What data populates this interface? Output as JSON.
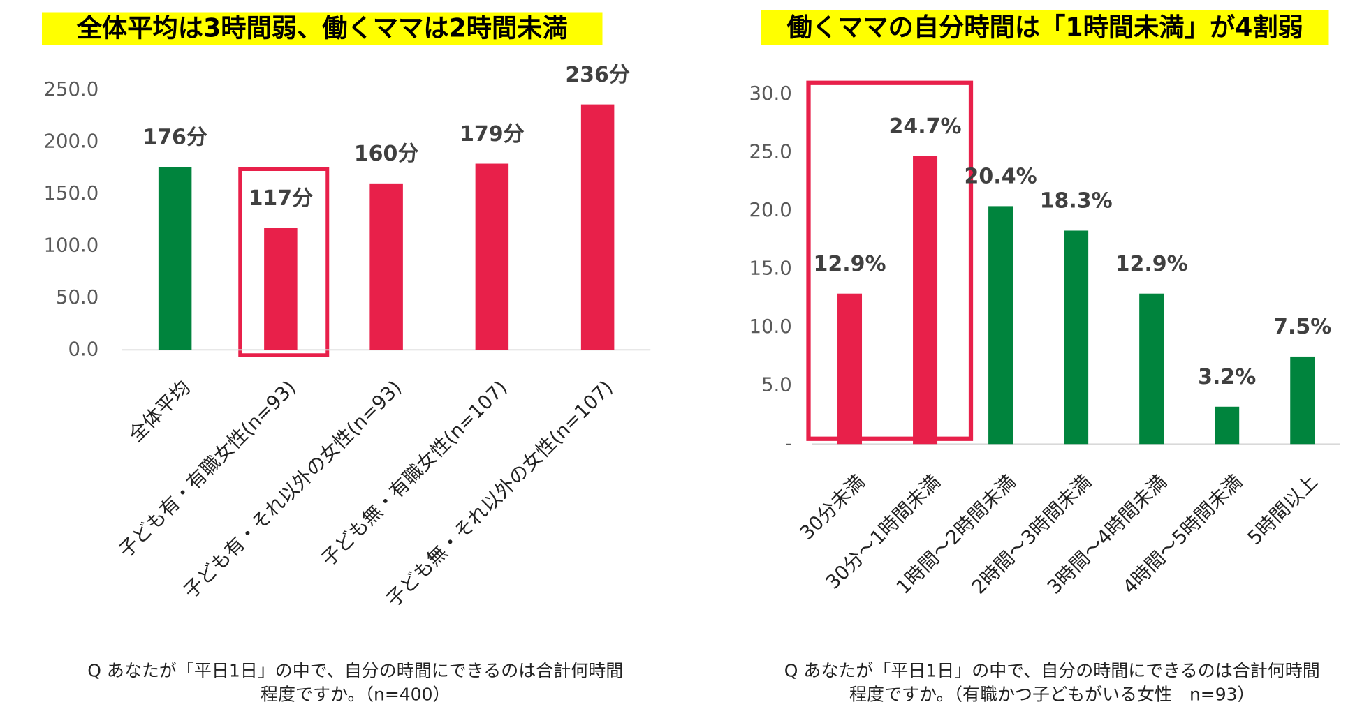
{
  "chart_data": [
    {
      "type": "bar",
      "title": "全体平均は3時間弱、働くママは2時間未満",
      "categories": [
        "全体平均",
        "子ども有・有職女性(n=93)",
        "子ども有・それ以外の女性(n=93)",
        "子ども無・有職女性(n=107)",
        "子ども無・それ以外の女性(n=107)"
      ],
      "values": [
        176,
        117,
        160,
        179,
        236
      ],
      "value_labels": [
        "176分",
        "117分",
        "160分",
        "179分",
        "236分"
      ],
      "colors": [
        "#00843d",
        "#e8204a",
        "#e8204a",
        "#e8204a",
        "#e8204a"
      ],
      "ylim": [
        0,
        250
      ],
      "yticks": [
        {
          "value": 0,
          "label": "0.0"
        },
        {
          "value": 50,
          "label": "50.0"
        },
        {
          "value": 100,
          "label": "100.0"
        },
        {
          "value": 150,
          "label": "150.0"
        },
        {
          "value": 200,
          "label": "200.0"
        },
        {
          "value": 250,
          "label": "250.0"
        }
      ],
      "footnote": [
        "Q あなたが「平日1日」の中で、自分の時間にできるのは合計何時間",
        "程度ですか。（n=400）"
      ]
    },
    {
      "type": "bar",
      "title": "働くママの自分時間は「1時間未満」が4割弱",
      "categories": [
        "30分未満",
        "30分～1時間未満",
        "1時間～2時間未満",
        "2時間～3時間未満",
        "3時間～4時間未満",
        "4時間～5時間未満",
        "5時間以上"
      ],
      "values": [
        12.9,
        24.7,
        20.4,
        18.3,
        12.9,
        3.2,
        7.5
      ],
      "value_labels": [
        "12.9%",
        "24.7%",
        "20.4%",
        "18.3%",
        "12.9%",
        "3.2%",
        "7.5%"
      ],
      "colors": [
        "#e8204a",
        "#e8204a",
        "#00843d",
        "#00843d",
        "#00843d",
        "#00843d",
        "#00843d"
      ],
      "ylim": [
        0,
        30
      ],
      "yticks": [
        {
          "value": 0,
          "label": "-"
        },
        {
          "value": 5,
          "label": "5.0"
        },
        {
          "value": 10,
          "label": "10.0"
        },
        {
          "value": 15,
          "label": "15.0"
        },
        {
          "value": 20,
          "label": "20.0"
        },
        {
          "value": 25,
          "label": "25.0"
        },
        {
          "value": 30,
          "label": "30.0"
        }
      ],
      "footnote": [
        "Q あなたが「平日1日」の中で、自分の時間にできるのは合計何時間",
        "程度ですか。（有職かつ子どもがいる女性　n=93）"
      ]
    }
  ]
}
